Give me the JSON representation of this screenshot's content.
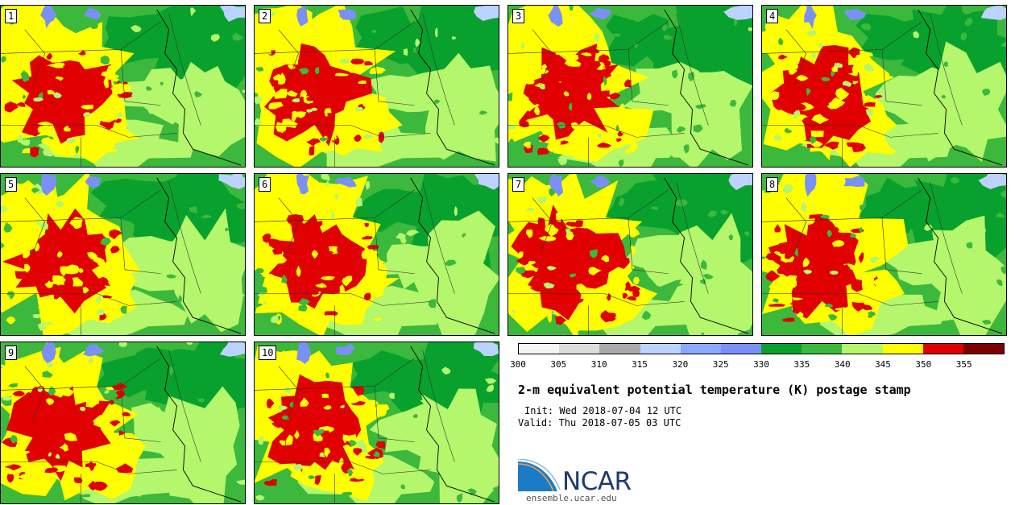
{
  "panels": [
    {
      "label": "1"
    },
    {
      "label": "2"
    },
    {
      "label": "3"
    },
    {
      "label": "4"
    },
    {
      "label": "5"
    },
    {
      "label": "6"
    },
    {
      "label": "7"
    },
    {
      "label": "8"
    },
    {
      "label": "9"
    },
    {
      "label": "10"
    }
  ],
  "colorbar": {
    "ticks": [
      "300",
      "305",
      "310",
      "315",
      "320",
      "325",
      "330",
      "335",
      "340",
      "345",
      "350",
      "355"
    ],
    "colors": [
      "#f5f5f5",
      "#dcdcdc",
      "#a9a9a9",
      "#bcd2ff",
      "#8aa8ff",
      "#7b90f4",
      "#08a12d",
      "#3cb83c",
      "#b4f66c",
      "#ffff00",
      "#e00000",
      "#7d0000"
    ]
  },
  "title": "2-m equivalent potential temperature (K) postage stamp",
  "init": "Init: Wed 2018-07-04 12 UTC",
  "valid": "Valid: Thu 2018-07-05 03 UTC",
  "logo": {
    "text": "NCAR",
    "url": "ensemble.ucar.edu"
  },
  "map_colors": {
    "land_dark": "#08a12d",
    "land_mid": "#3cb83c",
    "land_light": "#b4f66c",
    "warm": "#ffff00",
    "hot": "#e00000",
    "lakes": "#7b90f4",
    "lakes_light": "#bcd2ff"
  }
}
